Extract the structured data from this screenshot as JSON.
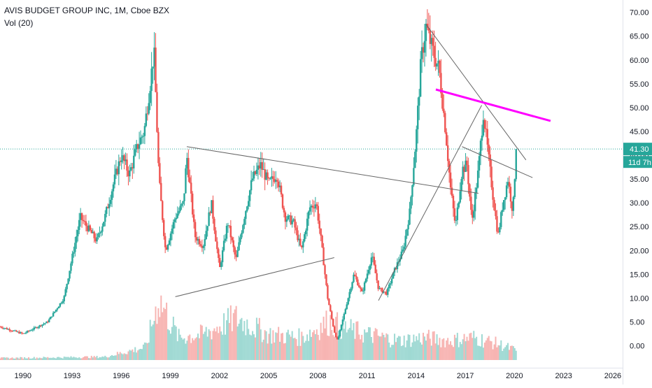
{
  "legend": {
    "title": "AVIS BUDGET GROUP INC, 1M, Cboe BZX",
    "volume": "Vol (20)"
  },
  "colors": {
    "up": "#26a69a",
    "down": "#ef5350",
    "vol_up": "#9fd9d3",
    "vol_down": "#f7b4b2",
    "trendline": "#666666",
    "highlight_line": "#ff00ff",
    "price_line": "#26a69a",
    "axis_text": "#131722",
    "grid": "#f0f3fa"
  },
  "chart_data": {
    "type": "candlestick",
    "title": "AVIS BUDGET GROUP INC, 1M, Cboe BZX",
    "ylabel": "",
    "xlabel": "",
    "ylim": [
      -3,
      72
    ],
    "xlim": [
      1988.6,
      2026.6
    ],
    "y_ticks": [
      "70.00",
      "65.00",
      "60.00",
      "55.00",
      "50.00",
      "45.00",
      "40.00",
      "35.00",
      "30.00",
      "25.00",
      "20.00",
      "15.00",
      "10.00",
      "5.00",
      "0.00"
    ],
    "x_ticks": [
      "1990",
      "1993",
      "1996",
      "1999",
      "2002",
      "2005",
      "2008",
      "2011",
      "2014",
      "2017",
      "2020",
      "2023",
      "2026"
    ],
    "last_price": "41.30",
    "countdown": "11d 7h",
    "price_path": [
      [
        1988.6,
        4.0
      ],
      [
        1990.0,
        2.5
      ],
      [
        1991.5,
        5.0
      ],
      [
        1992.5,
        10.0
      ],
      [
        1993.5,
        27.0
      ],
      [
        1994.5,
        22.0
      ],
      [
        1995.0,
        27.0
      ],
      [
        1995.6,
        35.0
      ],
      [
        1996.0,
        40.0
      ],
      [
        1996.5,
        36.0
      ],
      [
        1997.0,
        42.0
      ],
      [
        1997.4,
        45.0
      ],
      [
        1997.8,
        56.0
      ],
      [
        1998.0,
        62.0
      ],
      [
        1998.3,
        35.0
      ],
      [
        1998.7,
        20.0
      ],
      [
        1999.3,
        27.0
      ],
      [
        1999.8,
        30.0
      ],
      [
        2000.0,
        40.0
      ],
      [
        2000.5,
        23.0
      ],
      [
        2001.0,
        21.0
      ],
      [
        2001.5,
        30.0
      ],
      [
        2002.0,
        16.0
      ],
      [
        2002.5,
        26.0
      ],
      [
        2003.0,
        18.0
      ],
      [
        2003.5,
        27.0
      ],
      [
        2004.0,
        35.0
      ],
      [
        2004.5,
        38.0
      ],
      [
        2005.0,
        34.0
      ],
      [
        2005.5,
        36.0
      ],
      [
        2006.0,
        27.0
      ],
      [
        2006.5,
        26.0
      ],
      [
        2007.0,
        20.0
      ],
      [
        2007.5,
        29.0
      ],
      [
        2007.9,
        30.0
      ],
      [
        2008.2,
        22.0
      ],
      [
        2008.6,
        10.0
      ],
      [
        2009.0,
        3.0
      ],
      [
        2009.2,
        1.0
      ],
      [
        2009.7,
        8.0
      ],
      [
        2010.2,
        15.0
      ],
      [
        2010.7,
        11.0
      ],
      [
        2011.3,
        19.0
      ],
      [
        2011.7,
        12.0
      ],
      [
        2012.2,
        11.0
      ],
      [
        2012.7,
        16.0
      ],
      [
        2013.2,
        20.0
      ],
      [
        2013.6,
        28.0
      ],
      [
        2014.0,
        44.0
      ],
      [
        2014.3,
        60.0
      ],
      [
        2014.6,
        67.0
      ],
      [
        2015.0,
        62.0
      ],
      [
        2015.4,
        58.0
      ],
      [
        2015.8,
        45.0
      ],
      [
        2016.1,
        33.0
      ],
      [
        2016.4,
        25.0
      ],
      [
        2016.8,
        37.0
      ],
      [
        2017.1,
        38.0
      ],
      [
        2017.4,
        26.0
      ],
      [
        2017.8,
        37.0
      ],
      [
        2018.1,
        49.0
      ],
      [
        2018.4,
        40.0
      ],
      [
        2018.7,
        31.0
      ],
      [
        2019.0,
        23.0
      ],
      [
        2019.3,
        30.0
      ],
      [
        2019.6,
        35.0
      ],
      [
        2019.9,
        28.0
      ],
      [
        2020.1,
        41.3
      ]
    ],
    "volume_path": [
      [
        1988.6,
        0.3
      ],
      [
        1995.0,
        0.5
      ],
      [
        1997.5,
        2.0
      ],
      [
        1998.3,
        9.5
      ],
      [
        1999.5,
        3.5
      ],
      [
        2001.0,
        4.0
      ],
      [
        2003.0,
        6.5
      ],
      [
        2005.0,
        4.0
      ],
      [
        2007.0,
        3.5
      ],
      [
        2008.7,
        6.0
      ],
      [
        2009.5,
        5.0
      ],
      [
        2011.0,
        4.0
      ],
      [
        2013.0,
        3.0
      ],
      [
        2014.5,
        3.5
      ],
      [
        2016.0,
        3.0
      ],
      [
        2017.5,
        3.5
      ],
      [
        2019.0,
        2.5
      ],
      [
        2020.1,
        1.5
      ]
    ],
    "trendlines": [
      {
        "points": [
          [
            2000.0,
            41.8
          ],
          [
            2017.8,
            32.0
          ]
        ],
        "color": "trendline"
      },
      {
        "points": [
          [
            1999.3,
            10.3
          ],
          [
            2009.0,
            18.5
          ]
        ],
        "color": "trendline"
      },
      {
        "points": [
          [
            2011.7,
            9.5
          ],
          [
            2018.0,
            50.5
          ]
        ],
        "color": "trendline"
      },
      {
        "points": [
          [
            2014.6,
            67.5
          ],
          [
            2020.7,
            39.0
          ]
        ],
        "color": "trendline"
      },
      {
        "points": [
          [
            2016.8,
            41.8
          ],
          [
            2021.1,
            35.3
          ]
        ],
        "color": "trendline"
      },
      {
        "points": [
          [
            2015.2,
            53.8
          ],
          [
            2022.2,
            47.2
          ]
        ],
        "color": "highlight_line"
      }
    ]
  }
}
